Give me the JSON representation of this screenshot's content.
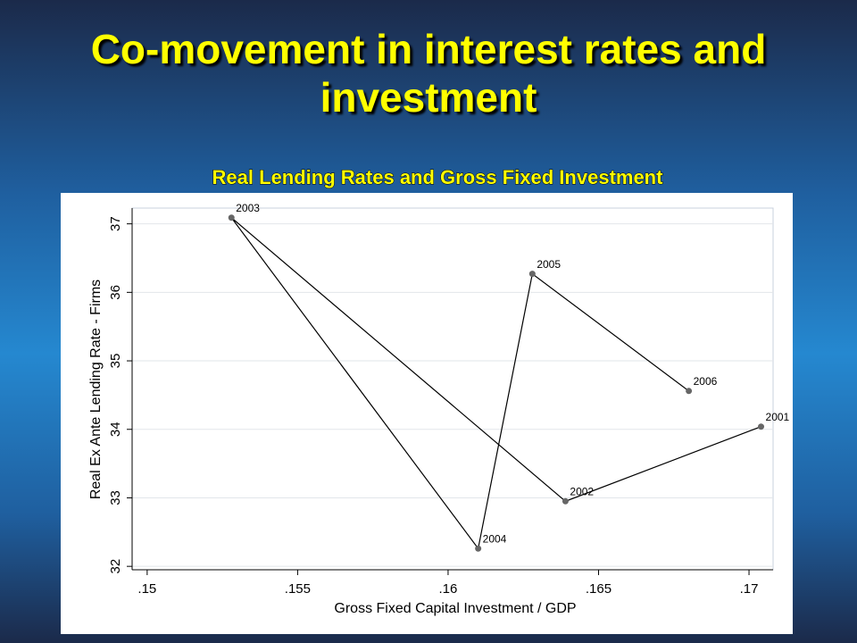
{
  "slide": {
    "title": "Co-movement in interest rates and investment"
  },
  "chart_data": {
    "type": "line",
    "title": "Real Lending Rates and Gross Fixed Investment",
    "x_label": "Gross Fixed Capital Investment / GDP",
    "y_label": "Real Ex Ante Lending Rate - Firms",
    "x": [
      0.1704,
      0.1639,
      0.1528,
      0.161,
      0.1628,
      0.168
    ],
    "series": [
      {
        "color": "#000000",
        "marker_color": "#666666",
        "values": [
          34.04,
          32.95,
          37.09,
          32.26,
          36.27,
          34.56
        ],
        "point_labels": [
          "2001",
          "2002",
          "2003",
          "2004",
          "2005",
          "2006"
        ]
      }
    ],
    "xlim": [
      0.1495,
      0.1708
    ],
    "ylim": [
      31.95,
      37.23
    ],
    "xticks": [
      {
        "value": 0.15,
        "label": ".15"
      },
      {
        "value": 0.155,
        "label": ".155"
      },
      {
        "value": 0.16,
        "label": ".16"
      },
      {
        "value": 0.165,
        "label": ".165"
      },
      {
        "value": 0.17,
        "label": ".17"
      }
    ],
    "yticks": [
      32,
      33,
      34,
      35,
      36,
      37
    ],
    "grid": true
  }
}
